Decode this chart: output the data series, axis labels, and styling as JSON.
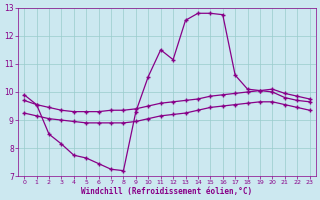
{
  "xlabel": "Windchill (Refroidissement éolien,°C)",
  "bg_color": "#cce8f0",
  "line_color": "#880088",
  "grid_color": "#99cccc",
  "xlim": [
    -0.5,
    23.5
  ],
  "ylim": [
    7,
    13
  ],
  "yticks": [
    7,
    8,
    9,
    10,
    11,
    12,
    13
  ],
  "xticks": [
    0,
    1,
    2,
    3,
    4,
    5,
    6,
    7,
    8,
    9,
    10,
    11,
    12,
    13,
    14,
    15,
    16,
    17,
    18,
    19,
    20,
    21,
    22,
    23
  ],
  "line1_x": [
    0,
    1,
    2,
    3,
    4,
    5,
    6,
    7,
    8,
    9,
    10,
    11,
    12,
    13,
    14,
    15,
    16,
    17,
    18,
    19,
    20,
    21,
    22,
    23
  ],
  "line1_y": [
    9.9,
    9.55,
    8.5,
    8.15,
    7.75,
    7.65,
    7.45,
    7.25,
    7.2,
    9.3,
    10.55,
    11.5,
    11.15,
    12.55,
    12.8,
    12.8,
    12.75,
    10.6,
    10.1,
    10.05,
    10.0,
    9.8,
    9.7,
    9.65
  ],
  "line2_x": [
    0,
    1,
    2,
    3,
    4,
    5,
    6,
    7,
    8,
    9,
    10,
    11,
    12,
    13,
    14,
    15,
    16,
    17,
    18,
    19,
    20,
    21,
    22,
    23
  ],
  "line2_y": [
    9.7,
    9.55,
    9.45,
    9.35,
    9.3,
    9.3,
    9.3,
    9.35,
    9.35,
    9.4,
    9.5,
    9.6,
    9.65,
    9.7,
    9.75,
    9.85,
    9.9,
    9.95,
    10.0,
    10.05,
    10.1,
    9.95,
    9.85,
    9.75
  ],
  "line3_x": [
    0,
    1,
    2,
    3,
    4,
    5,
    6,
    7,
    8,
    9,
    10,
    11,
    12,
    13,
    14,
    15,
    16,
    17,
    18,
    19,
    20,
    21,
    22,
    23
  ],
  "line3_y": [
    9.25,
    9.15,
    9.05,
    9.0,
    8.95,
    8.9,
    8.9,
    8.9,
    8.9,
    8.95,
    9.05,
    9.15,
    9.2,
    9.25,
    9.35,
    9.45,
    9.5,
    9.55,
    9.6,
    9.65,
    9.65,
    9.55,
    9.45,
    9.35
  ]
}
